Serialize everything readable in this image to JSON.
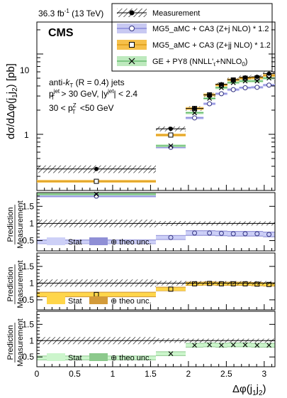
{
  "header": {
    "lumi_label": "36.3 fb",
    "lumi_sup": "-1",
    "energy_label": "(13 TeV)",
    "experiment": "CMS"
  },
  "annotations": {
    "jet_alg_prefix": "anti-",
    "jet_alg_k": "k",
    "jet_alg_sub": "T",
    "jet_alg_suffix": "(R = 0.4) jets",
    "pt_cut_p": "p",
    "pt_cut_sup": "jet",
    "pt_cut_sub": "T",
    "pt_cut_text": "> 30 GeV, |y",
    "y_cut_sup": "jet",
    "y_cut_text": "| < 2.4",
    "ptz_lo": "30 <",
    "ptz_p": "p",
    "ptz_sup": "Z",
    "ptz_sub": "T",
    "ptz_hi": "<50 GeV"
  },
  "legend": [
    {
      "key": "measurement",
      "label": "Measurement",
      "color": "#000000"
    },
    {
      "key": "zj",
      "label": "MG5_aMC + CA3 (Z+j NLO) * 1.2",
      "color": "#7b7bd0"
    },
    {
      "key": "zjj",
      "label": "MG5_aMC + CA3 (Z+jj NLO) * 1.2",
      "color": "#f2a900"
    },
    {
      "key": "ge",
      "label": "GE + PY8 (NNLL'",
      "label_sub": "τ",
      "label_mid": "+NNLO",
      "label_sub2": "0",
      "label_end": ")",
      "color": "#3ea54a"
    }
  ],
  "axes": {
    "main_ylabel": "dσ/dΔφ(j",
    "main_ylabel_sub1": "1",
    "main_ylabel_mid": "j",
    "main_ylabel_sub2": "2",
    "main_ylabel_unit": ") [pb]",
    "ratio_ylabel_top": "Prediction",
    "ratio_ylabel_bottom": "Measurement",
    "xlabel": "Δφ(j",
    "xlabel_sub1": "1",
    "xlabel_mid": "j",
    "xlabel_sub2": "2",
    "xlabel_end": ")",
    "main_yticks": [
      "1",
      "10"
    ],
    "ratio_yticks": [
      "0.5",
      "1",
      "1.5"
    ],
    "xticks": [
      "0",
      "0.5",
      "1",
      "1.5",
      "2",
      "2.5",
      "3"
    ]
  },
  "ratio_legends": [
    {
      "stat": "Stat",
      "theo": "⊕ theo unc.",
      "stat_color": "#cdd0f7",
      "theo_color": "#8f8fd6"
    },
    {
      "stat": "Stat",
      "theo": "⊕ theo unc.",
      "stat_color": "#ffd64a",
      "theo_color": "#d39b3a"
    },
    {
      "stat": "Stat",
      "theo": "⊕ theo unc.",
      "stat_color": "#ccf5cc",
      "theo_color": "#8cc98c"
    }
  ],
  "chart_data": {
    "type": "scatter",
    "x_edges": [
      0,
      1.5708,
      1.9635,
      2.1991,
      2.3562,
      2.5133,
      2.6704,
      2.8274,
      2.9845,
      3.1416
    ],
    "x_centers": [
      0.785,
      1.767,
      2.081,
      2.278,
      2.435,
      2.592,
      2.749,
      2.906,
      3.063
    ],
    "xlim": [
      0,
      3.1416
    ],
    "main": {
      "yscale": "log",
      "ylim": [
        0.2,
        25
      ],
      "measurement": {
        "name": "Measurement",
        "values": [
          0.37,
          1.17,
          2.1,
          3.1,
          4.2,
          4.8,
          5.1,
          5.2,
          5.7
        ],
        "unc": [
          0.04,
          0.08,
          0.13,
          0.18,
          0.24,
          0.27,
          0.29,
          0.3,
          0.32
        ]
      },
      "series": [
        {
          "key": "zj",
          "name": "MG5_aMC + CA3 (Z+j NLO) * 1.2",
          "values": [
            0.17,
            0.69,
            1.6,
            2.4,
            3.2,
            3.6,
            3.8,
            3.85,
            4.1
          ],
          "band": [
            0.16,
            0.18
          ]
        },
        {
          "key": "zjj",
          "name": "MG5_aMC + CA3 (Z+jj NLO) * 1.2",
          "values": [
            0.26,
            0.98,
            2.1,
            3.1,
            4.1,
            4.75,
            5.0,
            5.05,
            5.4
          ],
          "band": [
            0.24,
            0.28
          ]
        },
        {
          "key": "ge",
          "name": "GE + PY8 (NNLL'τ+NNLO0)",
          "values": [
            0.18,
            0.72,
            1.85,
            2.8,
            3.8,
            4.4,
            4.6,
            4.6,
            5.0
          ],
          "band": [
            0.17,
            0.19
          ]
        }
      ]
    },
    "ratios": [
      {
        "key": "zj",
        "ylim": [
          0.2,
          1.9
        ],
        "values": [
          0.46,
          0.59,
          0.72,
          0.72,
          0.71,
          0.7,
          0.7,
          0.7,
          0.68
        ],
        "band_lo": [
          0.4,
          0.52,
          0.64,
          0.64,
          0.63,
          0.62,
          0.62,
          0.62,
          0.6
        ],
        "band_hi": [
          0.53,
          0.66,
          0.8,
          0.8,
          0.79,
          0.78,
          0.78,
          0.78,
          0.76
        ],
        "marker": "circle"
      },
      {
        "key": "zjj",
        "ylim": [
          0.2,
          1.9
        ],
        "values": [
          0.66,
          0.82,
          0.98,
          0.99,
          0.98,
          0.98,
          0.98,
          0.97,
          0.96
        ],
        "band_lo": [
          0.58,
          0.76,
          0.92,
          0.93,
          0.92,
          0.92,
          0.92,
          0.91,
          0.9
        ],
        "band_hi": [
          0.74,
          0.89,
          1.04,
          1.05,
          1.04,
          1.04,
          1.04,
          1.03,
          1.02
        ],
        "marker": "square"
      },
      {
        "key": "ge",
        "ylim": [
          0.2,
          1.9
        ],
        "values": [
          0.47,
          0.6,
          0.86,
          0.87,
          0.86,
          0.87,
          0.87,
          0.86,
          0.86
        ],
        "band_lo": [
          0.4,
          0.53,
          0.79,
          0.8,
          0.79,
          0.8,
          0.8,
          0.79,
          0.79
        ],
        "band_hi": [
          0.54,
          0.67,
          0.93,
          0.94,
          0.93,
          0.94,
          0.94,
          0.93,
          0.93
        ],
        "marker": "cross"
      }
    ],
    "ratio_meas_unc": [
      0.11,
      0.07,
      0.06,
      0.06,
      0.06,
      0.06,
      0.06,
      0.06,
      0.06
    ]
  }
}
